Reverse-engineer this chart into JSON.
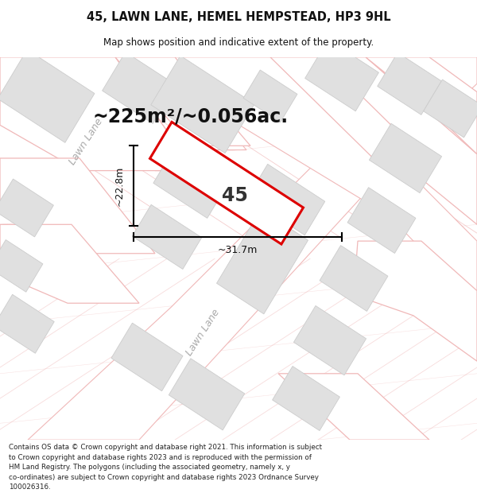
{
  "title_line1": "45, LAWN LANE, HEMEL HEMPSTEAD, HP3 9HL",
  "title_line2": "Map shows position and indicative extent of the property.",
  "area_text": "~225m²/~0.056ac.",
  "label_45": "45",
  "dim_width": "~31.7m",
  "dim_height": "~22.8m",
  "footer_lines": [
    "Contains OS data © Crown copyright and database right 2021. This information is subject",
    "to Crown copyright and database rights 2023 and is reproduced with the permission of",
    "HM Land Registry. The polygons (including the associated geometry, namely x, y",
    "co-ordinates) are subject to Crown copyright and database rights 2023 Ordnance Survey",
    "100026316."
  ],
  "map_bg": "#ffffff",
  "header_bg": "#ffffff",
  "footer_bg": "#ffffff",
  "road_color": "#f0b8b8",
  "building_color": "#e0e0e0",
  "building_edge": "#cccccc",
  "plot_edge": "#cccccc",
  "red_polygon_color": "#dd0000",
  "lawn_lane_label1": "Lawn Lane",
  "lawn_lane_label2": "Lawn Lane"
}
